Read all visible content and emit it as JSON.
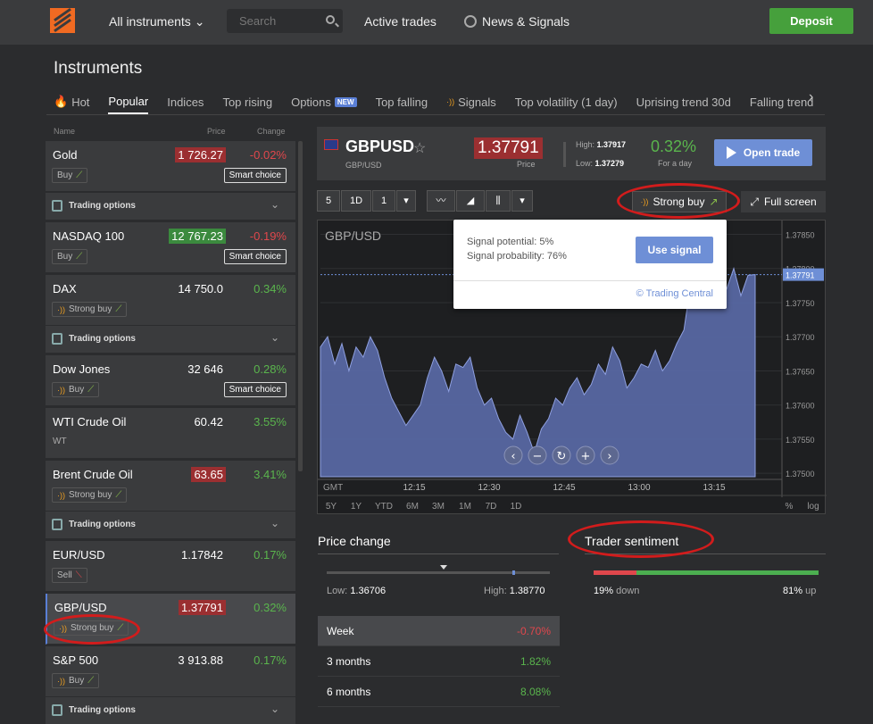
{
  "topbar": {
    "all_instruments": "All instruments",
    "search_placeholder": "Search",
    "active_trades": "Active trades",
    "news_signals": "News & Signals",
    "deposit": "Deposit"
  },
  "page_title": "Instruments",
  "tabs": [
    "Hot",
    "Popular",
    "Indices",
    "Top rising",
    "Options",
    "Top falling",
    "Signals",
    "Top volatility (1 day)",
    "Uprising trend 30d",
    "Falling trend"
  ],
  "tab_new_badge": "NEW",
  "list_header": {
    "name": "Name",
    "price": "Price",
    "change": "Change"
  },
  "trading_options_label": "Trading options",
  "smart_choice_label": "Smart choice",
  "instruments": [
    {
      "name": "Gold",
      "price": "1 726.27",
      "change": "-0.02%",
      "signal": "Buy"
    },
    {
      "name": "NASDAQ 100",
      "price": "12 767.23",
      "change": "-0.19%",
      "signal": "Buy"
    },
    {
      "name": "DAX",
      "price": "14 750.0",
      "change": "0.34%",
      "signal": "Strong buy"
    },
    {
      "name": "Dow Jones",
      "price": "32 646",
      "change": "0.28%",
      "signal": "Buy"
    },
    {
      "name": "WTI Crude Oil",
      "price": "60.42",
      "change": "3.55%",
      "sub": "WT"
    },
    {
      "name": "Brent Crude Oil",
      "price": "63.65",
      "change": "3.41%",
      "signal": "Strong buy"
    },
    {
      "name": "EUR/USD",
      "price": "1.17842",
      "change": "0.17%",
      "signal": "Sell"
    },
    {
      "name": "GBP/USD",
      "price": "1.37791",
      "change": "0.32%",
      "signal": "Strong buy"
    },
    {
      "name": "S&P 500",
      "price": "3 913.88",
      "change": "0.17%",
      "signal": "Buy"
    }
  ],
  "detail": {
    "pair": "GBPUSD",
    "pair_sub": "GBP/USD",
    "price": "1.37791",
    "price_label": "Price",
    "high_label": "High:",
    "high": "1.37917",
    "low_label": "Low:",
    "low": "1.37279",
    "day_change": "0.32%",
    "day_label": "For a day",
    "open_trade": "Open trade"
  },
  "toolbar": {
    "b5": "5",
    "b1d": "1D",
    "b1": "1",
    "strong_buy": "Strong buy",
    "full_screen": "Full screen"
  },
  "chart_data": {
    "type": "area",
    "symbol": "GBP/USD",
    "current_label": "1.37791",
    "y_ticks": [
      "1.37850",
      "1.37800",
      "1.37750",
      "1.37700",
      "1.37650",
      "1.37600",
      "1.37550",
      "1.37500"
    ],
    "x_ticks": [
      "12:15",
      "12:30",
      "12:45",
      "13:00",
      "13:15"
    ],
    "tz": "GMT",
    "ranges": [
      "5Y",
      "1Y",
      "YTD",
      "6M",
      "3M",
      "1M",
      "7D",
      "1D"
    ],
    "scale_opts": [
      "%",
      "log"
    ],
    "ylim": [
      1.37495,
      1.37865
    ],
    "values": [
      1.37685,
      1.377,
      1.3766,
      1.3769,
      1.3765,
      1.37685,
      1.3767,
      1.377,
      1.3768,
      1.3764,
      1.3761,
      1.3759,
      1.3757,
      1.37585,
      1.376,
      1.3764,
      1.3767,
      1.3765,
      1.3762,
      1.3766,
      1.37655,
      1.3767,
      1.37625,
      1.376,
      1.3761,
      1.3758,
      1.3756,
      1.3755,
      1.37585,
      1.3756,
      1.3753,
      1.37565,
      1.3758,
      1.3761,
      1.376,
      1.37625,
      1.3764,
      1.37615,
      1.3763,
      1.3766,
      1.37645,
      1.37685,
      1.37665,
      1.37625,
      1.3764,
      1.3766,
      1.37655,
      1.3768,
      1.3765,
      1.37665,
      1.3769,
      1.3771,
      1.3778,
      1.3776,
      1.37795,
      1.3776,
      1.3778,
      1.3777,
      1.378,
      1.3776,
      1.3779,
      1.37791
    ]
  },
  "popup": {
    "potential_label": "Signal potential:",
    "potential": "5%",
    "probability_label": "Signal probability:",
    "probability": "76%",
    "use_signal": "Use signal",
    "provider": "© Trading Central"
  },
  "price_change": {
    "title": "Price change",
    "low_label": "Low:",
    "low": "1.36706",
    "high_label": "High:",
    "high": "1.38770",
    "rows": [
      {
        "period": "Week",
        "value": "-0.70%"
      },
      {
        "period": "3 months",
        "value": "1.82%"
      },
      {
        "period": "6 months",
        "value": "8.08%"
      }
    ]
  },
  "sentiment": {
    "title": "Trader sentiment",
    "down_pct": "19%",
    "down_label": "down",
    "up_pct": "81%",
    "up_label": "up",
    "down_value": 19
  }
}
